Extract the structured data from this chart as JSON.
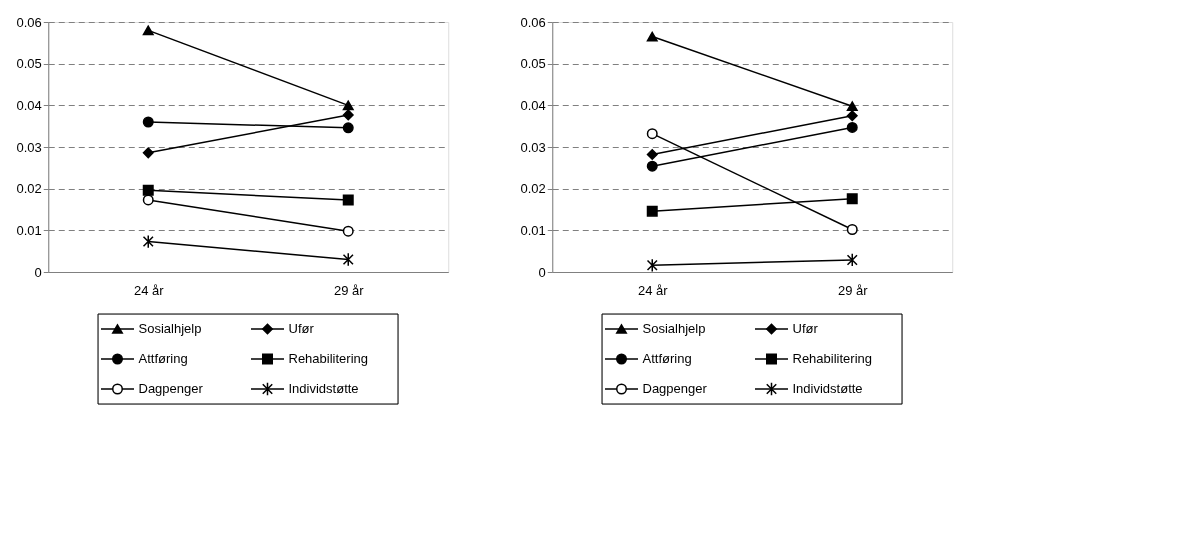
{
  "chart_data": [
    {
      "type": "line",
      "categories": [
        "24 år",
        "29 år"
      ],
      "ylim": [
        0,
        0.06
      ],
      "yticks": [
        0,
        0.01,
        0.02,
        0.03,
        0.04,
        0.05,
        0.06
      ],
      "grid": "y",
      "legend": "bottom",
      "series": [
        {
          "name": "Sosialhjelp",
          "color": "#000000",
          "marker": "triangle",
          "values": [
            0.058,
            0.04
          ]
        },
        {
          "name": "Ufør",
          "color": "#000000",
          "marker": "diamond",
          "values": [
            0.0286,
            0.0377
          ]
        },
        {
          "name": "Attføring",
          "color": "#000000",
          "marker": "circle",
          "values": [
            0.036,
            0.0346
          ]
        },
        {
          "name": "Rehabilitering",
          "color": "#000000",
          "marker": "square",
          "values": [
            0.0196,
            0.0173
          ]
        },
        {
          "name": "Dagpenger",
          "color": "#000000",
          "marker": "circle-open",
          "values": [
            0.0173,
            0.0098
          ]
        },
        {
          "name": "Individstøtte",
          "color": "#000000",
          "marker": "cross",
          "values": [
            0.0073,
            0.003
          ]
        }
      ]
    },
    {
      "type": "line",
      "categories": [
        "24 år",
        "29 år"
      ],
      "ylim": [
        0,
        0.06
      ],
      "yticks": [
        0,
        0.01,
        0.02,
        0.03,
        0.04,
        0.05,
        0.06
      ],
      "grid": "y",
      "legend": "bottom",
      "series": [
        {
          "name": "Sosialhjelp",
          "color": "#000000",
          "marker": "triangle",
          "values": [
            0.0565,
            0.0398
          ]
        },
        {
          "name": "Ufør",
          "color": "#000000",
          "marker": "diamond",
          "values": [
            0.0282,
            0.0375
          ]
        },
        {
          "name": "Attføring",
          "color": "#000000",
          "marker": "circle",
          "values": [
            0.0254,
            0.0347
          ]
        },
        {
          "name": "Rehabilitering",
          "color": "#000000",
          "marker": "square",
          "values": [
            0.0146,
            0.0176
          ]
        },
        {
          "name": "Dagpenger",
          "color": "#000000",
          "marker": "circle-open",
          "values": [
            0.0332,
            0.0102
          ]
        },
        {
          "name": "Individstøtte",
          "color": "#000000",
          "marker": "cross",
          "values": [
            0.0016,
            0.0029
          ]
        }
      ]
    }
  ]
}
